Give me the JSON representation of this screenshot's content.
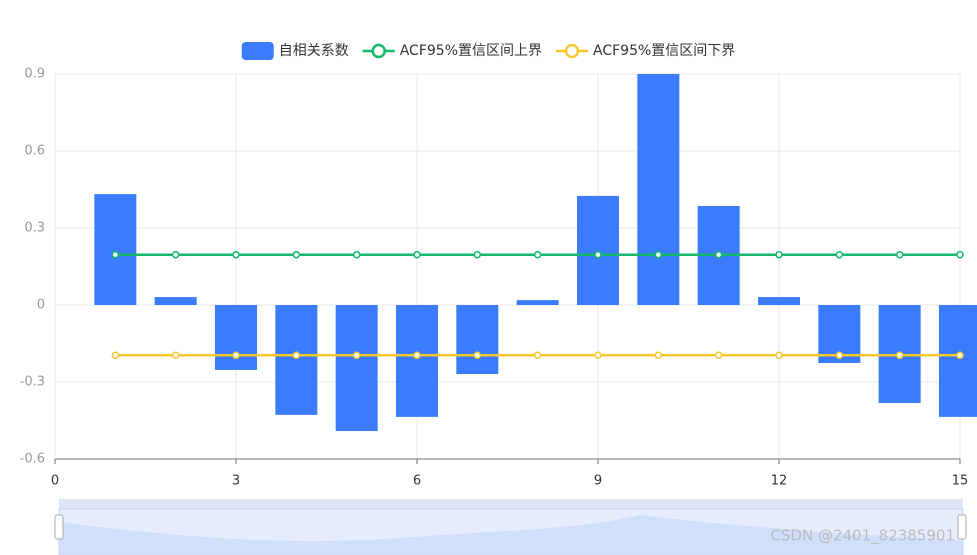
{
  "chart_data": {
    "type": "bar",
    "x": [
      1,
      2,
      3,
      4,
      5,
      6,
      7,
      8,
      9,
      10,
      11,
      12,
      13,
      14,
      15
    ],
    "series": [
      {
        "name": "自相关系数",
        "type": "bar",
        "color": "#3b7cff",
        "values": [
          0.432,
          0.031,
          -0.253,
          -0.428,
          -0.491,
          -0.436,
          -0.269,
          0.019,
          0.425,
          0.9,
          0.386,
          0.031,
          -0.226,
          -0.382,
          -0.436
        ]
      },
      {
        "name": "ACF95%置信区间上界",
        "type": "line",
        "color": "#14b86b",
        "values": [
          0.196,
          0.196,
          0.196,
          0.196,
          0.196,
          0.196,
          0.196,
          0.196,
          0.196,
          0.196,
          0.196,
          0.196,
          0.196,
          0.196,
          0.196
        ]
      },
      {
        "name": "ACF95%置信区间下界",
        "type": "line",
        "color": "#f5c832",
        "values": [
          -0.196,
          -0.196,
          -0.196,
          -0.196,
          -0.196,
          -0.196,
          -0.196,
          -0.196,
          -0.196,
          -0.196,
          -0.196,
          -0.196,
          -0.196,
          -0.196,
          -0.196
        ]
      }
    ],
    "xlim": [
      0,
      15
    ],
    "xticks": [
      0,
      3,
      6,
      9,
      12,
      15
    ],
    "ylim": [
      -0.6,
      0.9
    ],
    "yticks": [
      -0.6,
      -0.3,
      0,
      0.3,
      0.6,
      0.9
    ],
    "grid": true,
    "legend": "top",
    "watermark": "CSDN @2401_82385901"
  }
}
